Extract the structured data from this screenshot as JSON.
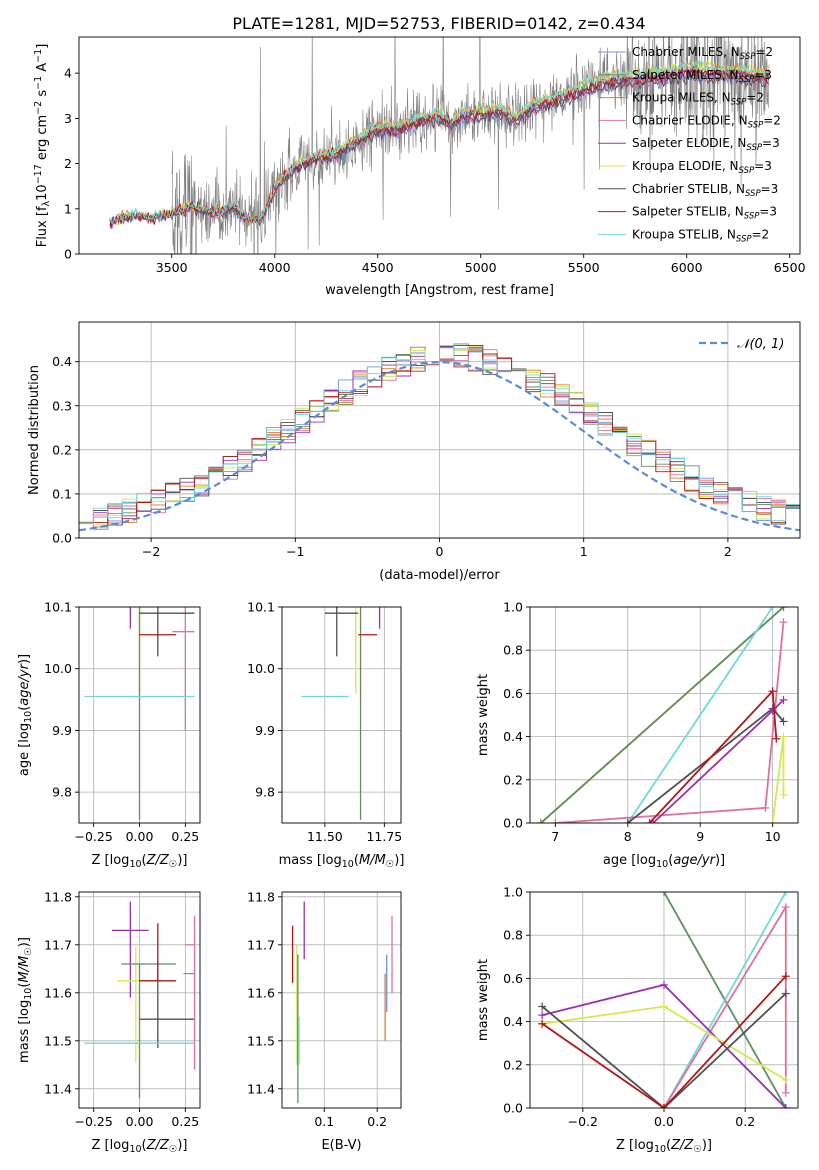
{
  "figure": {
    "title": "PLATE=1281, MJD=52753, FIBERID=0142, z=0.434"
  },
  "colors": {
    "chabrier_miles": "#6f8fe0",
    "salpeter_miles": "#5f8f5f",
    "kroupa_miles": "#e07f2f",
    "chabrier_elodie": "#e070a0",
    "salpeter_elodie": "#9a30b0",
    "kroupa_elodie": "#d4e850",
    "chabrier_stelib": "#505050",
    "salpeter_stelib": "#b01818",
    "kroupa_stelib": "#70d8d8",
    "data": "#808080",
    "gaussian": "#5b8ad8"
  },
  "chart_data": [
    {
      "id": "spectrum",
      "type": "line",
      "xlabel": "wavelength [Angstrom, rest frame]",
      "ylabel": "Flux [f_λ 10^-17 erg cm^-2 s^-1 A^-1]",
      "xlim": [
        3050,
        6550
      ],
      "ylim": [
        0,
        4.8
      ],
      "xticks": [
        3500,
        4000,
        4500,
        5000,
        5500,
        6000,
        6500
      ],
      "yticks": [
        0,
        1,
        2,
        3,
        4
      ],
      "legend_position": "right",
      "data_range": [
        3500,
        6400
      ],
      "model_range": [
        3200,
        6400
      ],
      "continuum_knots": {
        "x": [
          3200,
          3300,
          3400,
          3500,
          3600,
          3700,
          3800,
          3850,
          3930,
          3970,
          4000,
          4050,
          4100,
          4200,
          4300,
          4400,
          4500,
          4600,
          4700,
          4800,
          4860,
          4900,
          5000,
          5100,
          5175,
          5250,
          5400,
          5500,
          5600,
          5700,
          5800,
          5900,
          6000,
          6100,
          6200,
          6300,
          6400
        ],
        "y": [
          0.7,
          0.85,
          0.8,
          0.9,
          1.05,
          0.9,
          1.05,
          0.8,
          0.75,
          1.1,
          1.45,
          1.7,
          1.9,
          2.15,
          2.2,
          2.5,
          2.75,
          2.75,
          2.95,
          3.05,
          2.85,
          3.05,
          3.1,
          3.15,
          2.95,
          3.25,
          3.45,
          3.65,
          3.8,
          3.85,
          3.9,
          3.95,
          4.05,
          4.0,
          4.0,
          3.95,
          3.9
        ]
      },
      "series": [
        {
          "name": "Chabrier MILES, N_SSP=2",
          "key": "chabrier_miles"
        },
        {
          "name": "Salpeter MILES, N_SSP=3",
          "key": "salpeter_miles"
        },
        {
          "name": "Kroupa MILES, N_SSP=2",
          "key": "kroupa_miles"
        },
        {
          "name": "Chabrier ELODIE, N_SSP=2",
          "key": "chabrier_elodie"
        },
        {
          "name": "Salpeter ELODIE, N_SSP=3",
          "key": "salpeter_elodie"
        },
        {
          "name": "Kroupa ELODIE, N_SSP=3",
          "key": "kroupa_elodie"
        },
        {
          "name": "Chabrier STELIB, N_SSP=3",
          "key": "chabrier_stelib"
        },
        {
          "name": "Salpeter STELIB, N_SSP=3",
          "key": "salpeter_stelib"
        },
        {
          "name": "Kroupa STELIB, N_SSP=2",
          "key": "kroupa_stelib"
        }
      ]
    },
    {
      "id": "residuals",
      "type": "histogram",
      "xlabel": "(data-model)/error",
      "ylabel": "Normed distribution",
      "xlim": [
        -2.5,
        2.5
      ],
      "ylim": [
        0,
        0.49
      ],
      "xticks": [
        -2,
        -1,
        0,
        1,
        2
      ],
      "yticks": [
        0.0,
        0.1,
        0.2,
        0.3,
        0.4
      ],
      "grid": true,
      "legend_position": "top-right",
      "gaussian": {
        "label": "𝒩(0, 1)",
        "mean": 0,
        "sigma": 1
      },
      "bin_width": 0.1
    },
    {
      "id": "z_age",
      "type": "errorbar",
      "xlabel": "Z [log10(Z/Z☉)]",
      "ylabel": "age [log10(age/yr)]",
      "xlim": [
        -0.33,
        0.33
      ],
      "ylim": [
        9.75,
        10.1
      ],
      "xticks": [
        -0.25,
        0.0,
        0.25
      ],
      "yticks": [
        9.8,
        9.9,
        10.0,
        10.1
      ],
      "grid": true,
      "points": [
        {
          "key": "salpeter_elodie",
          "x": -0.05,
          "xerr": [
            0.07,
            0.13
          ],
          "y": 10.145,
          "yerr": [
            0.08,
            0.03
          ]
        },
        {
          "key": "kroupa_elodie",
          "x": 0.0,
          "xerr": [
            0.18,
            0.1
          ],
          "y": 10.14,
          "yerr": [
            0.18,
            0.02
          ]
        },
        {
          "key": "chabrier_miles",
          "x": 0.0,
          "xerr": [
            0.1,
            0.2
          ],
          "y": 10.13,
          "yerr": [
            0.01,
            0.03
          ]
        },
        {
          "key": "salpeter_miles",
          "x": 0.0,
          "xerr": [
            0.3,
            0.3
          ],
          "y": 10.145,
          "yerr": [
            0.39,
            0.03
          ]
        },
        {
          "key": "chabrier_elodie",
          "x": 0.25,
          "xerr": [
            0.07,
            0.05
          ],
          "y": 10.06,
          "yerr": [
            0.16,
            0.09
          ]
        },
        {
          "key": "kroupa_stelib",
          "x": 0.0,
          "xerr": [
            0.3,
            0.3
          ],
          "y": 9.955,
          "yerr": [
            0.0,
            0.0
          ]
        },
        {
          "key": "chabrier_stelib",
          "x": 0.1,
          "xerr": [
            0.1,
            0.2
          ],
          "y": 10.09,
          "yerr": [
            0.07,
            0.08
          ]
        },
        {
          "key": "salpeter_stelib",
          "x": 0.1,
          "xerr": [
            0.1,
            0.1
          ],
          "y": 10.055,
          "yerr": [
            0.0,
            0.0
          ]
        }
      ]
    },
    {
      "id": "mass_age",
      "type": "errorbar",
      "xlabel": "mass [log10(M/M☉)]",
      "ylabel": "",
      "xlim": [
        11.32,
        11.82
      ],
      "ylim": [
        9.75,
        10.1
      ],
      "xticks": [
        11.5,
        11.75
      ],
      "yticks": [
        9.8,
        9.9,
        10.0,
        10.1
      ],
      "grid": true,
      "points": [
        {
          "key": "salpeter_miles",
          "x": 11.65,
          "xerr": [
            0.3,
            0.1
          ],
          "y": 10.145,
          "yerr": [
            0.39,
            0.03
          ]
        },
        {
          "key": "salpeter_elodie",
          "x": 11.73,
          "xerr": [
            0.1,
            0.1
          ],
          "y": 10.145,
          "yerr": [
            0.08,
            0.03
          ]
        },
        {
          "key": "kroupa_elodie",
          "x": 11.63,
          "xerr": [
            0.1,
            0.1
          ],
          "y": 10.14,
          "yerr": [
            0.18,
            0.02
          ]
        },
        {
          "key": "chabrier_miles",
          "x": 11.68,
          "xerr": [
            0.04,
            0.06
          ],
          "y": 10.13,
          "yerr": [
            0.01,
            0.03
          ]
        },
        {
          "key": "chabrier_elodie",
          "x": 11.7,
          "xerr": [
            0.04,
            0.05
          ],
          "y": 10.13,
          "yerr": [
            0.0,
            0.0
          ]
        },
        {
          "key": "kroupa_stelib",
          "x": 11.5,
          "xerr": [
            0.1,
            0.1
          ],
          "y": 9.955,
          "yerr": [
            0.0,
            0.0
          ]
        },
        {
          "key": "chabrier_stelib",
          "x": 11.55,
          "xerr": [
            0.05,
            0.09
          ],
          "y": 10.09,
          "yerr": [
            0.07,
            0.08
          ]
        },
        {
          "key": "salpeter_stelib",
          "x": 11.68,
          "xerr": [
            0.04,
            0.04
          ],
          "y": 10.055,
          "yerr": [
            0.0,
            0.0
          ]
        }
      ]
    },
    {
      "id": "age_weight",
      "type": "line",
      "xlabel": "age [log10(age/yr)]",
      "ylabel": "mass weight",
      "xlim": [
        6.65,
        10.35
      ],
      "ylim": [
        0,
        1
      ],
      "xticks": [
        7,
        8,
        9,
        10
      ],
      "yticks": [
        0.0,
        0.2,
        0.4,
        0.6,
        0.8,
        1.0
      ],
      "grid": true,
      "series": [
        {
          "key": "kroupa_miles",
          "x": [
            6.8,
            10.15
          ],
          "y": [
            0.0,
            1.0
          ]
        },
        {
          "key": "salpeter_miles",
          "x": [
            6.8,
            10.15
          ],
          "y": [
            0.0,
            1.0
          ]
        },
        {
          "key": "kroupa_stelib",
          "x": [
            8.0,
            10.0
          ],
          "y": [
            0.0,
            1.0
          ]
        },
        {
          "key": "chabrier_elodie",
          "x": [
            7.0,
            9.9,
            10.15
          ],
          "y": [
            0.0,
            0.07,
            0.93
          ]
        },
        {
          "key": "chabrier_stelib",
          "x": [
            8.0,
            10.0,
            10.15
          ],
          "y": [
            0.0,
            0.53,
            0.47
          ]
        },
        {
          "key": "salpeter_elodie",
          "x": [
            8.35,
            10.0,
            10.15
          ],
          "y": [
            0.0,
            0.52,
            0.57
          ]
        },
        {
          "key": "salpeter_stelib",
          "x": [
            8.3,
            10.0,
            10.05
          ],
          "y": [
            0.0,
            0.61,
            0.39
          ]
        },
        {
          "key": "kroupa_elodie",
          "x": [
            10.0,
            10.15,
            10.15
          ],
          "y": [
            0.0,
            0.4,
            0.13
          ]
        }
      ]
    },
    {
      "id": "z_mass",
      "type": "errorbar",
      "xlabel": "Z [log10(Z/Z☉)]",
      "ylabel": "mass [log10(M/M☉)]",
      "xlim": [
        -0.33,
        0.33
      ],
      "ylim": [
        11.36,
        11.81
      ],
      "xticks": [
        -0.25,
        0.0,
        0.25
      ],
      "yticks": [
        11.4,
        11.5,
        11.6,
        11.7,
        11.8
      ],
      "grid": true,
      "points": [
        {
          "key": "salpeter_elodie",
          "x": -0.05,
          "xerr": [
            0.1,
            0.1
          ],
          "y": 11.73,
          "yerr": [
            0.14,
            0.06
          ]
        },
        {
          "key": "kroupa_elodie",
          "x": -0.02,
          "xerr": [
            0.1,
            0.1
          ],
          "y": 11.625,
          "yerr": [
            0.17,
            0.07
          ]
        },
        {
          "key": "salpeter_miles",
          "x": 0.0,
          "xerr": [
            0.1,
            0.2
          ],
          "y": 11.66,
          "yerr": [
            0.28,
            0.0
          ]
        },
        {
          "key": "chabrier_stelib",
          "x": 0.1,
          "xerr": [
            0.1,
            0.2
          ],
          "y": 11.545,
          "yerr": [
            0.06,
            0.12
          ]
        },
        {
          "key": "salpeter_stelib",
          "x": 0.1,
          "xerr": [
            0.1,
            0.1
          ],
          "y": 11.625,
          "yerr": [
            0.0,
            0.12
          ]
        },
        {
          "key": "chabrier_elodie",
          "x": 0.3,
          "xerr": [
            0.05,
            0.0
          ],
          "y": 11.7,
          "yerr": [
            0.26,
            0.06
          ]
        },
        {
          "key": "kroupa_stelib",
          "x": 0.0,
          "xerr": [
            0.3,
            0.3
          ],
          "y": 11.495,
          "yerr": [
            0.0,
            0.0
          ]
        },
        {
          "key": "chabrier_miles",
          "x": 0.28,
          "xerr": [
            0.04,
            0.02
          ],
          "y": 11.64,
          "yerr": [
            0.0,
            0.0
          ]
        }
      ]
    },
    {
      "id": "ebv_mass",
      "type": "errorbar",
      "xlabel": "E(B-V)",
      "ylabel": "",
      "xlim": [
        0.02,
        0.245
      ],
      "ylim": [
        11.36,
        11.81
      ],
      "xticks": [
        0.1,
        0.2
      ],
      "yticks": [
        11.4,
        11.5,
        11.6,
        11.7,
        11.8
      ],
      "grid": true,
      "points": [
        {
          "key": "salpeter_stelib",
          "x": 0.04,
          "xerr": [
            0,
            0
          ],
          "y": 11.68,
          "yerr": [
            0.06,
            0.06
          ]
        },
        {
          "key": "kroupa_elodie",
          "x": 0.048,
          "xerr": [
            0,
            0
          ],
          "y": 11.6,
          "yerr": [
            0.15,
            0.1
          ]
        },
        {
          "key": "salpeter_miles",
          "x": 0.05,
          "xerr": [
            0,
            0
          ],
          "y": 11.55,
          "yerr": [
            0.18,
            0.13
          ]
        },
        {
          "key": "kroupa_stelib",
          "x": 0.052,
          "xerr": [
            0,
            0
          ],
          "y": 11.5,
          "yerr": [
            0.05,
            0.05
          ]
        },
        {
          "key": "salpeter_elodie",
          "x": 0.062,
          "xerr": [
            0,
            0
          ],
          "y": 11.73,
          "yerr": [
            0.06,
            0.06
          ]
        },
        {
          "key": "kroupa_miles",
          "x": 0.215,
          "xerr": [
            0,
            0
          ],
          "y": 11.57,
          "yerr": [
            0.07,
            0.07
          ]
        },
        {
          "key": "chabrier_miles",
          "x": 0.218,
          "xerr": [
            0,
            0
          ],
          "y": 11.62,
          "yerr": [
            0.06,
            0.06
          ]
        },
        {
          "key": "chabrier_elodie",
          "x": 0.228,
          "xerr": [
            0,
            0
          ],
          "y": 11.68,
          "yerr": [
            0.08,
            0.08
          ]
        }
      ]
    },
    {
      "id": "z_weight",
      "type": "line",
      "xlabel": "Z [log10(Z/Z☉)]",
      "ylabel": "mass weight",
      "xlim": [
        -0.33,
        0.33
      ],
      "ylim": [
        0,
        1
      ],
      "xticks": [
        -0.2,
        0.0,
        0.2
      ],
      "yticks": [
        0.0,
        0.2,
        0.4,
        0.6,
        0.8,
        1.0
      ],
      "grid": true,
      "series": [
        {
          "key": "salpeter_miles",
          "x": [
            0.0,
            0.3
          ],
          "y": [
            1.0,
            0.0
          ]
        },
        {
          "key": "kroupa_stelib",
          "x": [
            0.0,
            0.3
          ],
          "y": [
            0.0,
            1.0
          ]
        },
        {
          "key": "chabrier_elodie",
          "x": [
            0.0,
            0.3,
            0.3
          ],
          "y": [
            0.0,
            0.93,
            0.07
          ]
        },
        {
          "key": "salpeter_elodie",
          "x": [
            -0.3,
            0.0,
            0.3
          ],
          "y": [
            0.43,
            0.57,
            0.0
          ]
        },
        {
          "key": "kroupa_elodie",
          "x": [
            -0.3,
            0.0,
            0.3
          ],
          "y": [
            0.39,
            0.47,
            0.13
          ]
        },
        {
          "key": "chabrier_stelib",
          "x": [
            -0.3,
            0.0,
            0.3
          ],
          "y": [
            0.47,
            0.0,
            0.53
          ]
        },
        {
          "key": "salpeter_stelib",
          "x": [
            -0.3,
            0.0,
            0.3
          ],
          "y": [
            0.39,
            0.0,
            0.61
          ]
        }
      ]
    }
  ]
}
